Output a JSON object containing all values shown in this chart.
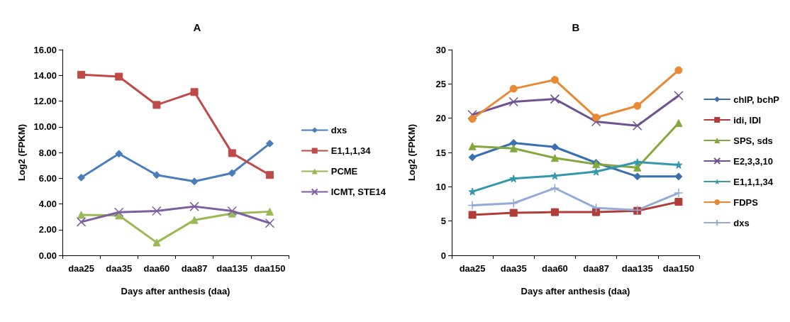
{
  "chart_data": [
    {
      "type": "line",
      "title": "A",
      "xlabel": "Days after anthesis (daa)",
      "ylabel": "Log2 (FPKM)",
      "categories": [
        "daa25",
        "daa35",
        "daa60",
        "daa87",
        "daa135",
        "daa150"
      ],
      "ylim": [
        0,
        16
      ],
      "yticks": [
        {
          "value": 0,
          "label": "0.00"
        },
        {
          "value": 2,
          "label": "2.00"
        },
        {
          "value": 4,
          "label": "4.00"
        },
        {
          "value": 6,
          "label": "6.00"
        },
        {
          "value": 8,
          "label": "8.00"
        },
        {
          "value": 10,
          "label": "10.00"
        },
        {
          "value": 12,
          "label": "12.00"
        },
        {
          "value": 14,
          "label": "14.00"
        },
        {
          "value": 16,
          "label": "16.00"
        }
      ],
      "grid": false,
      "legend": "right",
      "line_style": "solid",
      "series": [
        {
          "name": "dxs",
          "color": "#4a7ebb",
          "marker": "diamond",
          "values": [
            6.05,
            7.9,
            6.25,
            5.75,
            6.4,
            8.7
          ]
        },
        {
          "name": "E1,1,1,34",
          "color": "#be4b48",
          "marker": "square",
          "values": [
            14.05,
            13.9,
            11.7,
            12.7,
            7.95,
            6.25
          ]
        },
        {
          "name": "PCME",
          "color": "#98b954",
          "marker": "triangle",
          "values": [
            3.15,
            3.1,
            1.0,
            2.75,
            3.25,
            3.4
          ]
        },
        {
          "name": "ICMT, STE14",
          "color": "#7d5fa0",
          "marker": "cross",
          "values": [
            2.6,
            3.35,
            3.45,
            3.8,
            3.45,
            2.5
          ]
        }
      ]
    },
    {
      "type": "line",
      "title": "B",
      "xlabel": "Days after anthesis (daa)",
      "ylabel": "Log2 (FPKM)",
      "categories": [
        "daa25",
        "daa35",
        "daa60",
        "daa87",
        "daa135",
        "daa150"
      ],
      "ylim": [
        0,
        30
      ],
      "yticks": [
        0,
        5,
        10,
        15,
        20,
        25,
        30
      ],
      "grid": false,
      "legend": "right",
      "line_style": "solid",
      "series": [
        {
          "name": "chlP, bchP",
          "color": "#3a6fb0",
          "marker": "diamond",
          "values": [
            14.3,
            16.4,
            15.8,
            13.5,
            11.5,
            11.5
          ]
        },
        {
          "name": "idi, IDI",
          "color": "#b23c3a",
          "marker": "square",
          "values": [
            5.9,
            6.2,
            6.3,
            6.3,
            6.5,
            7.8
          ]
        },
        {
          "name": "SPS, sds",
          "color": "#85a83e",
          "marker": "triangle",
          "values": [
            15.9,
            15.6,
            14.2,
            13.3,
            12.8,
            19.3
          ]
        },
        {
          "name": "E2,3,3,10",
          "color": "#6e5390",
          "marker": "cross",
          "values": [
            20.5,
            22.4,
            22.8,
            19.5,
            18.9,
            23.3
          ]
        },
        {
          "name": "E1,1,1,34",
          "color": "#3498ad",
          "marker": "star",
          "values": [
            9.3,
            11.2,
            11.6,
            12.2,
            13.6,
            13.2
          ]
        },
        {
          "name": "FDPS",
          "color": "#e88a35",
          "marker": "circle",
          "values": [
            19.9,
            24.3,
            25.6,
            20.1,
            21.8,
            27.0
          ]
        },
        {
          "name": "dxs",
          "color": "#93acd6",
          "marker": "plus",
          "values": [
            7.3,
            7.6,
            9.8,
            6.9,
            6.6,
            9.1
          ]
        }
      ]
    }
  ]
}
